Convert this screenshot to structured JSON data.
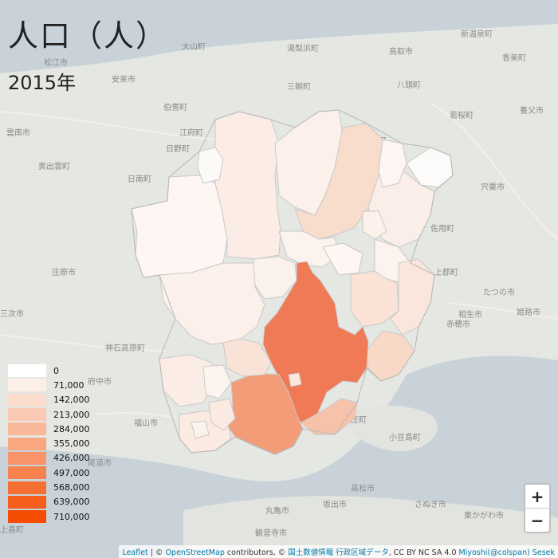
{
  "title": "人口（人）",
  "subtitle": "2015年",
  "legend": [
    {
      "label": "0",
      "color": "#ffffff"
    },
    {
      "label": "71,000",
      "color": "#fdeee7"
    },
    {
      "label": "142,000",
      "color": "#fcdccd"
    },
    {
      "label": "213,000",
      "color": "#fbcab4"
    },
    {
      "label": "284,000",
      "color": "#fab89a"
    },
    {
      "label": "355,000",
      "color": "#f9a681"
    },
    {
      "label": "426,000",
      "color": "#f89467"
    },
    {
      "label": "497,000",
      "color": "#f7824e"
    },
    {
      "label": "568,000",
      "color": "#f67034"
    },
    {
      "label": "639,000",
      "color": "#f55e1b"
    },
    {
      "label": "710,000",
      "color": "#f44c01"
    }
  ],
  "zoom": {
    "in": "+",
    "out": "−"
  },
  "attribution": {
    "leaflet": "Leaflet",
    "sep1": " | © ",
    "osm": "OpenStreetMap",
    "contrib": " contributors, © ",
    "kokudo": "国土数値情報 行政区域データ",
    "license": ", CC BY NC SA 4.0 ",
    "author": "Miyoshi(@colspan) Sesek"
  },
  "basemap_labels": [
    "松江市",
    "安来市",
    "大山町",
    "湯梨浜町",
    "鳥取市",
    "新温泉町",
    "香美町",
    "智頭町",
    "三朝町",
    "八頭町",
    "若桜町",
    "宍粟市",
    "佐用町",
    "たつの市",
    "姫路市",
    "相生市",
    "上郡町",
    "赤穂市",
    "養父市",
    "雲南市",
    "奥出雲町",
    "日南町",
    "日野町",
    "伯耆町",
    "江府町",
    "庄原市",
    "三次市",
    "神石高原町",
    "府中市",
    "福山市",
    "尾道市",
    "上島町",
    "丸亀市",
    "坂出市",
    "高松市",
    "さぬき市",
    "東かがわ市",
    "小豆島町",
    "土庄町",
    "観音寺市"
  ],
  "regions": [
    "新見市",
    "真庭市",
    "鏡野町",
    "津山市",
    "美作市",
    "西粟倉村",
    "奈義町",
    "勝央町",
    "美咲町",
    "久米南町",
    "吉備中央町",
    "高梁市",
    "岡山市",
    "倉敷市",
    "総社市",
    "赤磐市",
    "和気町",
    "備前市",
    "瀬戸内市",
    "玉野市",
    "笠岡市",
    "井原市",
    "矢掛町",
    "浅口市",
    "里庄町",
    "早島町",
    "新庄村",
    "鏡野町北部"
  ]
}
